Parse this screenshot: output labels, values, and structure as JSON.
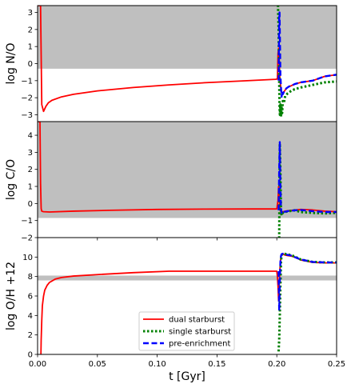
{
  "chart_data": {
    "type": "line",
    "xlabel": "t [Gyr]",
    "xlim": [
      0.0,
      0.25
    ],
    "xticks": [
      "0.00",
      "0.05",
      "0.10",
      "0.15",
      "0.20",
      "0.25"
    ],
    "legend": {
      "location": "bottom-center",
      "entries": [
        {
          "name": "dual starburst",
          "color": "#ff0000",
          "style": "solid"
        },
        {
          "name": "single starburst",
          "color": "#008000",
          "style": "dotted"
        },
        {
          "name": "pre-enrichment",
          "color": "#0000ff",
          "style": "dashed"
        }
      ]
    },
    "panels": [
      {
        "ylabel": "log N/O",
        "ylim": [
          -3.4,
          3.4
        ],
        "yticks": [
          "−3",
          "−2",
          "−1",
          "0",
          "1",
          "2",
          "3"
        ],
        "shaded_band": [
          -0.3,
          3.4
        ],
        "series": [
          {
            "name": "dual starburst",
            "x": [
              0.0,
              0.002,
              0.0025,
              0.0035,
              0.005,
              0.007,
              0.009,
              0.012,
              0.02,
              0.03,
              0.05,
              0.08,
              0.11,
              0.14,
              0.17,
              0.199,
              0.2005,
              0.201,
              0.2015,
              0.202,
              0.2025,
              0.203,
              0.2035,
              0.204,
              0.205,
              0.2065,
              0.208,
              0.21,
              0.212,
              0.215,
              0.22,
              0.23,
              0.24,
              0.25
            ],
            "y": [
              3.4,
              3.4,
              3.4,
              -2.4,
              -2.8,
              -2.5,
              -2.3,
              -2.15,
              -1.95,
              -1.8,
              -1.6,
              -1.4,
              -1.25,
              -1.12,
              -1.02,
              -0.92,
              -0.9,
              0.6,
              0.9,
              0.3,
              -0.8,
              -1.2,
              -1.5,
              -1.7,
              -1.75,
              -1.6,
              -1.45,
              -1.35,
              -1.3,
              -1.2,
              -1.1,
              -1.0,
              -0.75,
              -0.65
            ]
          },
          {
            "name": "single starburst",
            "x": [
              0.2005,
              0.201,
              0.2015,
              0.202,
              0.2023,
              0.2026,
              0.203,
              0.2035,
              0.204,
              0.2045,
              0.205,
              0.206,
              0.207,
              0.209,
              0.212,
              0.215,
              0.22,
              0.23,
              0.24,
              0.25
            ],
            "y": [
              3.4,
              3.4,
              2.0,
              -1.0,
              -2.6,
              -3.0,
              -2.4,
              -3.1,
              -2.5,
              -2.9,
              -2.2,
              -2.3,
              -1.9,
              -1.75,
              -1.6,
              -1.5,
              -1.4,
              -1.25,
              -1.1,
              -1.05
            ]
          },
          {
            "name": "pre-enrichment",
            "x": [
              0.2015,
              0.202,
              0.2023,
              0.2026,
              0.203,
              0.2035,
              0.204,
              0.2045,
              0.205,
              0.206,
              0.207,
              0.208,
              0.21,
              0.212,
              0.215,
              0.22,
              0.23,
              0.24,
              0.25
            ],
            "y": [
              -1.0,
              2.8,
              3.0,
              1.5,
              -0.6,
              -1.4,
              -1.95,
              -1.6,
              -1.8,
              -1.65,
              -1.55,
              -1.45,
              -1.35,
              -1.3,
              -1.2,
              -1.1,
              -1.0,
              -0.75,
              -0.65
            ]
          }
        ]
      },
      {
        "ylabel": "log C/O",
        "ylim": [
          -2.0,
          4.8
        ],
        "yticks": [
          "−2",
          "−1",
          "0",
          "1",
          "2",
          "3",
          "4"
        ],
        "shaded_band": [
          -0.85,
          4.8
        ],
        "series": [
          {
            "name": "dual starburst",
            "x": [
              0.0,
              0.002,
              0.0025,
              0.003,
              0.0035,
              0.005,
              0.01,
              0.03,
              0.06,
              0.1,
              0.14,
              0.18,
              0.2,
              0.201,
              0.2015,
              0.202,
              0.2025,
              0.203,
              0.204,
              0.205,
              0.207,
              0.21,
              0.215,
              0.22,
              0.23,
              0.24,
              0.25
            ],
            "y": [
              4.8,
              4.8,
              1.2,
              -0.3,
              -0.45,
              -0.48,
              -0.5,
              -0.45,
              -0.4,
              -0.35,
              -0.33,
              -0.32,
              -0.32,
              0.2,
              1.0,
              0.3,
              -0.2,
              -0.45,
              -0.5,
              -0.48,
              -0.45,
              -0.42,
              -0.38,
              -0.35,
              -0.38,
              -0.45,
              -0.48
            ]
          },
          {
            "name": "single starburst",
            "x": [
              0.2015,
              0.202,
              0.2025,
              0.203,
              0.2035,
              0.204,
              0.2045,
              0.205,
              0.206,
              0.208,
              0.21,
              0.215,
              0.22,
              0.23,
              0.24,
              0.25
            ],
            "y": [
              -2.0,
              -2.0,
              3.5,
              2.0,
              -0.5,
              -0.7,
              -0.6,
              -0.55,
              -0.5,
              -0.48,
              -0.45,
              -0.4,
              -0.5,
              -0.55,
              -0.58,
              -0.55
            ]
          },
          {
            "name": "pre-enrichment",
            "x": [
              0.2015,
              0.202,
              0.2025,
              0.203,
              0.2035,
              0.204,
              0.2045,
              0.205,
              0.207,
              0.21,
              0.215,
              0.22,
              0.23,
              0.24,
              0.25
            ],
            "y": [
              -0.4,
              2.0,
              3.6,
              1.0,
              -0.3,
              -0.55,
              -0.45,
              -0.5,
              -0.48,
              -0.44,
              -0.4,
              -0.38,
              -0.45,
              -0.5,
              -0.5
            ]
          }
        ]
      },
      {
        "ylabel": "log O/H +12",
        "ylim": [
          0,
          12
        ],
        "yticks": [
          "0",
          "2",
          "4",
          "6",
          "8",
          "10"
        ],
        "shaded_band": [
          7.6,
          8.1
        ],
        "series": [
          {
            "name": "dual starburst",
            "x": [
              0.0028,
              0.003,
              0.0035,
              0.004,
              0.005,
              0.006,
              0.008,
              0.01,
              0.015,
              0.02,
              0.03,
              0.05,
              0.08,
              0.11,
              0.15,
              0.18,
              0.2,
              0.2005,
              0.201,
              0.2015,
              0.202,
              0.2025,
              0.203,
              0.2035,
              0.204,
              0.205,
              0.206,
              0.207,
              0.209,
              0.212,
              0.215,
              0.22,
              0.23,
              0.24,
              0.25
            ],
            "y": [
              0,
              1.5,
              3.5,
              5.0,
              6.0,
              6.6,
              7.1,
              7.4,
              7.75,
              7.9,
              8.05,
              8.2,
              8.4,
              8.55,
              8.55,
              8.55,
              8.55,
              8.0,
              7.0,
              5.5,
              7.0,
              8.5,
              9.5,
              10.1,
              10.25,
              10.3,
              10.25,
              10.2,
              10.15,
              10.1,
              10.0,
              9.7,
              9.45,
              9.4,
              9.4
            ]
          },
          {
            "name": "single starburst",
            "x": [
              0.2015,
              0.202,
              0.2025,
              0.203,
              0.2035,
              0.204,
              0.205,
              0.206,
              0.208,
              0.212,
              0.215,
              0.22,
              0.23,
              0.24,
              0.25
            ],
            "y": [
              0.3,
              1.5,
              4.0,
              7.0,
              9.5,
              10.2,
              10.35,
              10.35,
              10.3,
              10.2,
              10.05,
              9.75,
              9.5,
              9.45,
              9.45
            ]
          },
          {
            "name": "pre-enrichment",
            "x": [
              0.2015,
              0.2018,
              0.202,
              0.2025,
              0.203,
              0.2035,
              0.204,
              0.205,
              0.206,
              0.208,
              0.212,
              0.215,
              0.22,
              0.23,
              0.24,
              0.25
            ],
            "y": [
              8.55,
              6.0,
              4.5,
              7.5,
              9.5,
              10.1,
              10.3,
              10.35,
              10.3,
              10.25,
              10.15,
              10.0,
              9.75,
              9.5,
              9.45,
              9.45
            ]
          }
        ]
      }
    ]
  }
}
